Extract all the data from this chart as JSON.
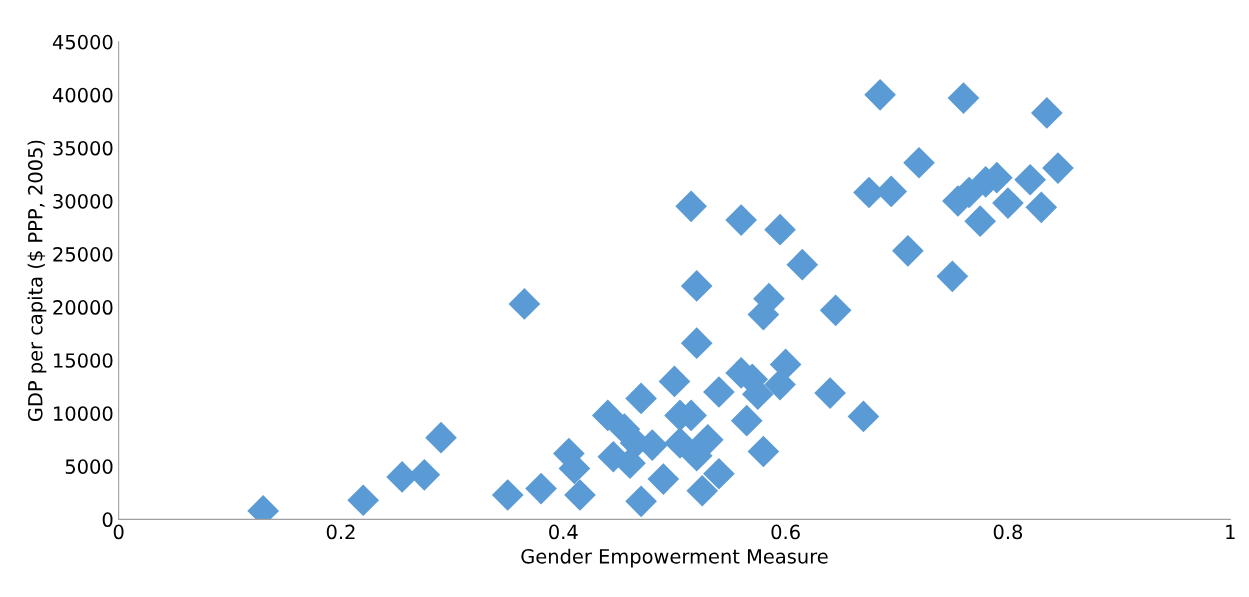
{
  "chart_data": {
    "type": "scatter",
    "xlabel": "Gender Empowerment Measure",
    "ylabel": "GDP per capita ($ PPP, 2005)",
    "xlim": [
      0,
      1
    ],
    "xticks": [
      0,
      0.2,
      0.4,
      0.6,
      0.8,
      1
    ],
    "ylim": [
      0,
      45000
    ],
    "yticks": [
      0,
      5000,
      10000,
      15000,
      20000,
      25000,
      30000,
      35000,
      40000,
      45000
    ],
    "marker": "diamond",
    "series": [
      {
        "color": "#5b9bd5",
        "x": [
          0.13,
          0.22,
          0.255,
          0.275,
          0.29,
          0.35,
          0.365,
          0.38,
          0.405,
          0.41,
          0.415,
          0.44,
          0.445,
          0.455,
          0.46,
          0.465,
          0.47,
          0.47,
          0.48,
          0.49,
          0.5,
          0.505,
          0.505,
          0.515,
          0.515,
          0.52,
          0.52,
          0.52,
          0.525,
          0.53,
          0.54,
          0.54,
          0.56,
          0.56,
          0.565,
          0.57,
          0.575,
          0.58,
          0.58,
          0.585,
          0.595,
          0.595,
          0.6,
          0.615,
          0.64,
          0.645,
          0.67,
          0.675,
          0.685,
          0.695,
          0.71,
          0.72,
          0.75,
          0.755,
          0.76,
          0.765,
          0.775,
          0.78,
          0.79,
          0.8,
          0.82,
          0.83,
          0.835,
          0.845
        ],
        "values": [
          800,
          1800,
          4000,
          4200,
          7700,
          2300,
          20300,
          2900,
          6200,
          4800,
          2300,
          9800,
          5900,
          8500,
          5300,
          7200,
          11400,
          1700,
          7000,
          3800,
          13000,
          9800,
          7200,
          29500,
          9800,
          22000,
          16600,
          6000,
          2700,
          7500,
          12000,
          4300,
          28200,
          13800,
          9300,
          13200,
          11800,
          19300,
          6400,
          20800,
          27300,
          12700,
          14600,
          24000,
          11900,
          19700,
          9700,
          30800,
          40000,
          30900,
          25300,
          33600,
          22900,
          30000,
          39700,
          30800,
          28100,
          31800,
          32200,
          29800,
          32000,
          29400,
          38300,
          33100
        ]
      }
    ]
  }
}
